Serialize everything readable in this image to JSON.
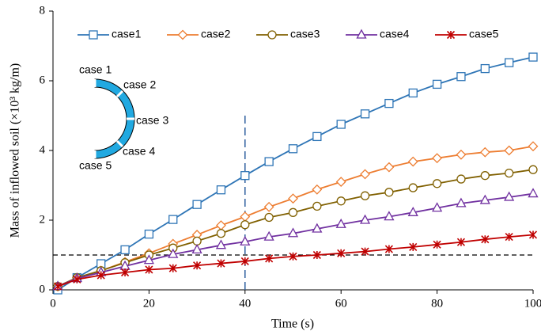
{
  "chart_data": {
    "type": "line",
    "x_label": "Time (s)",
    "y_label": "Mass of inflowed soil (×10³ kg/m)",
    "x": [
      1,
      5,
      10,
      15,
      20,
      25,
      30,
      35,
      40,
      45,
      50,
      55,
      60,
      65,
      70,
      75,
      80,
      85,
      90,
      95,
      100
    ],
    "series": [
      {
        "name": "case1",
        "color": "#2e75b6",
        "marker": "square",
        "values": [
          0.0,
          0.35,
          0.75,
          1.15,
          1.6,
          2.02,
          2.45,
          2.87,
          3.28,
          3.68,
          4.05,
          4.4,
          4.75,
          5.05,
          5.35,
          5.65,
          5.9,
          6.12,
          6.35,
          6.52,
          6.68
        ]
      },
      {
        "name": "case2",
        "color": "#ed7d31",
        "marker": "diamond",
        "values": [
          0.1,
          0.35,
          0.55,
          0.8,
          1.05,
          1.32,
          1.58,
          1.85,
          2.1,
          2.38,
          2.62,
          2.88,
          3.1,
          3.32,
          3.52,
          3.68,
          3.78,
          3.88,
          3.95,
          4.0,
          4.12
        ]
      },
      {
        "name": "case3",
        "color": "#806000",
        "marker": "circle",
        "values": [
          0.1,
          0.35,
          0.55,
          0.78,
          1.0,
          1.2,
          1.4,
          1.62,
          1.87,
          2.08,
          2.22,
          2.4,
          2.55,
          2.7,
          2.8,
          2.93,
          3.05,
          3.18,
          3.28,
          3.35,
          3.45
        ]
      },
      {
        "name": "case4",
        "color": "#7030a0",
        "marker": "triangle",
        "values": [
          0.1,
          0.33,
          0.5,
          0.68,
          0.85,
          1.02,
          1.15,
          1.28,
          1.38,
          1.52,
          1.62,
          1.75,
          1.88,
          2.0,
          2.1,
          2.22,
          2.35,
          2.48,
          2.57,
          2.66,
          2.76
        ]
      },
      {
        "name": "case5",
        "color": "#c00000",
        "marker": "asterisk",
        "values": [
          0.1,
          0.3,
          0.42,
          0.5,
          0.58,
          0.62,
          0.7,
          0.76,
          0.82,
          0.9,
          0.96,
          1.0,
          1.05,
          1.1,
          1.17,
          1.23,
          1.3,
          1.37,
          1.45,
          1.52,
          1.58
        ]
      }
    ],
    "xlim": [
      0,
      100
    ],
    "xticks": [
      0,
      20,
      40,
      60,
      80,
      100
    ],
    "ylim": [
      0,
      8
    ],
    "yticks": [
      0,
      2,
      4,
      6,
      8
    ],
    "vlines": [
      {
        "x": 40,
        "y_end": 5.1,
        "color": "#2e5f9e"
      }
    ],
    "hlines": [
      {
        "y": 1,
        "color": "#000000"
      }
    ],
    "legend": "top",
    "inset_labels": [
      "case 1",
      "case 2",
      "case 3",
      "case 4",
      "case 5"
    ]
  }
}
